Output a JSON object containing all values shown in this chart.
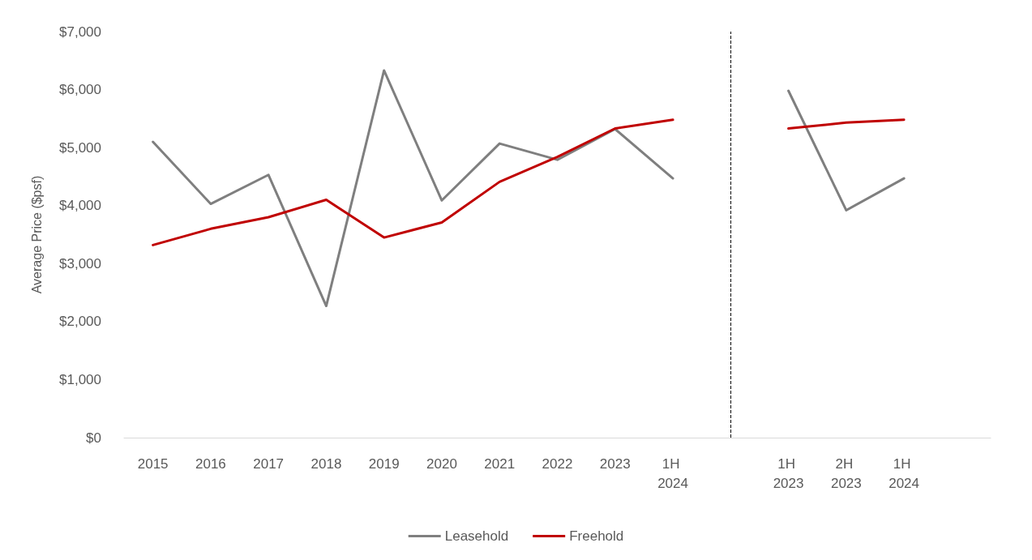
{
  "chart_data": {
    "type": "line",
    "ylabel": "Average Price ($psf)",
    "categories": [
      "2015",
      "2016",
      "2017",
      "2018",
      "2019",
      "2020",
      "2021",
      "2022",
      "2023",
      "1H 2024",
      null,
      "1H 2023",
      "2H 2023",
      "1H 2024",
      null
    ],
    "series": [
      {
        "name": "Leasehold",
        "color": "#7f7f7f",
        "values": [
          5100,
          4030,
          4530,
          2270,
          6330,
          4090,
          5070,
          4790,
          5320,
          4470,
          null,
          5980,
          3920,
          4470,
          null
        ]
      },
      {
        "name": "Freehold",
        "color": "#c00000",
        "values": [
          3320,
          3600,
          3800,
          4100,
          3450,
          3710,
          4410,
          4840,
          5330,
          5480,
          null,
          5330,
          5430,
          5480,
          null
        ]
      }
    ],
    "ylim": [
      0,
      7000
    ],
    "yticks": [
      {
        "value": 0,
        "label": "$0"
      },
      {
        "value": 1000,
        "label": "$1,000"
      },
      {
        "value": 2000,
        "label": "$2,000"
      },
      {
        "value": 3000,
        "label": "$3,000"
      },
      {
        "value": 4000,
        "label": "$4,000"
      },
      {
        "value": 5000,
        "label": "$5,000"
      },
      {
        "value": 6000,
        "label": "$6,000"
      },
      {
        "value": 7000,
        "label": "$7,000"
      }
    ],
    "ref_lines": [
      {
        "axis": "x",
        "color": "#000000",
        "line_style": "dashed"
      }
    ],
    "legend": "bottom",
    "marker": "none",
    "line_style": "solid"
  }
}
